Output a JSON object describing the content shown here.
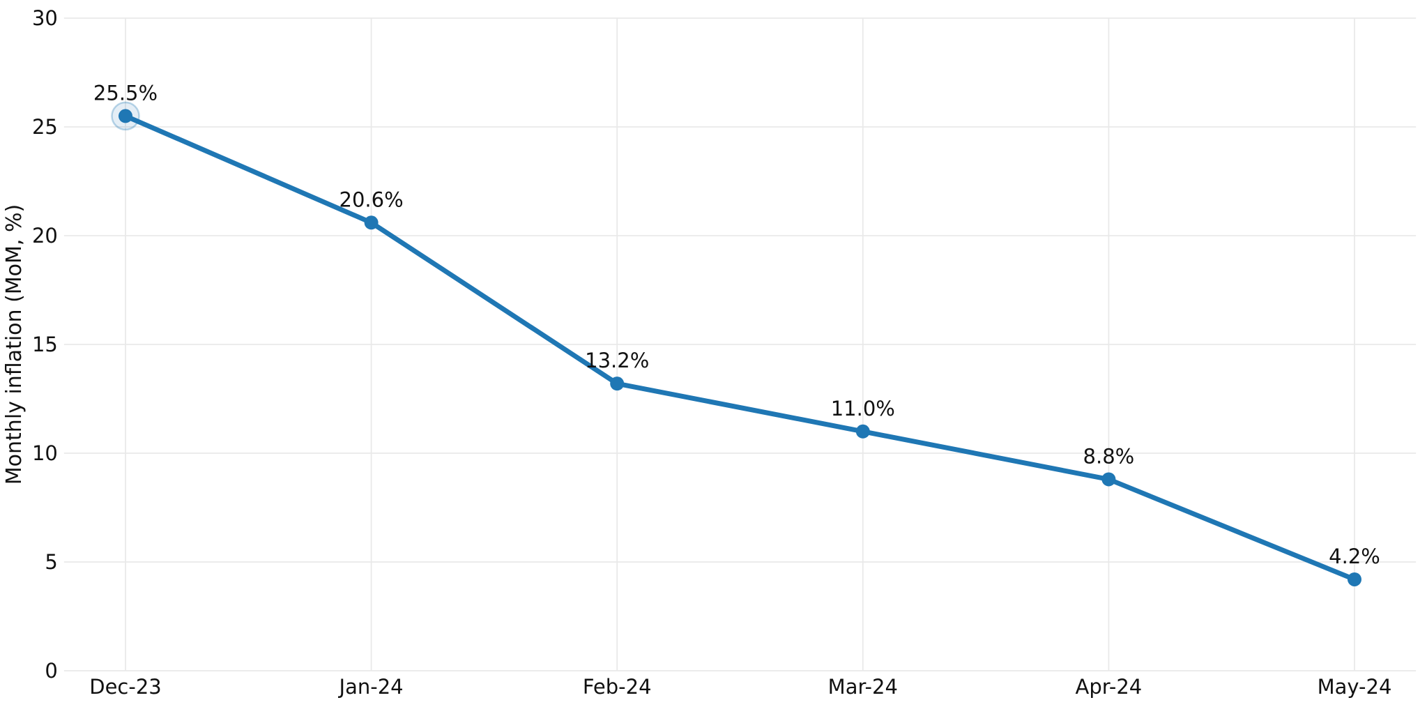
{
  "chart_data": {
    "type": "line",
    "categories": [
      "Dec-23",
      "Jan-24",
      "Feb-24",
      "Mar-24",
      "Apr-24",
      "May-24"
    ],
    "values": [
      25.5,
      20.6,
      13.2,
      11.0,
      8.8,
      4.2
    ],
    "point_labels": [
      "25.5%",
      "20.6%",
      "13.2%",
      "11.0%",
      "8.8%",
      "4.2%"
    ],
    "title": "",
    "xlabel": "",
    "ylabel": "Monthly inflation (MoM, %)",
    "ylim": [
      0,
      30
    ],
    "yticks": [
      0,
      5,
      10,
      15,
      20,
      25,
      30
    ],
    "ytick_labels": [
      "0",
      "5",
      "10",
      "15",
      "20",
      "25",
      "30"
    ],
    "grid": true,
    "legend_position": "none",
    "line_color": "#1f77b4",
    "marker_color": "#1f77b4",
    "grid_color": "#e9e9e9",
    "text_color": "#111111",
    "background_color": "#ffffff",
    "highlight": {
      "index": 0,
      "fill": "rgba(31,119,180,0.12)",
      "ring": "rgba(31,119,180,0.30)"
    }
  }
}
